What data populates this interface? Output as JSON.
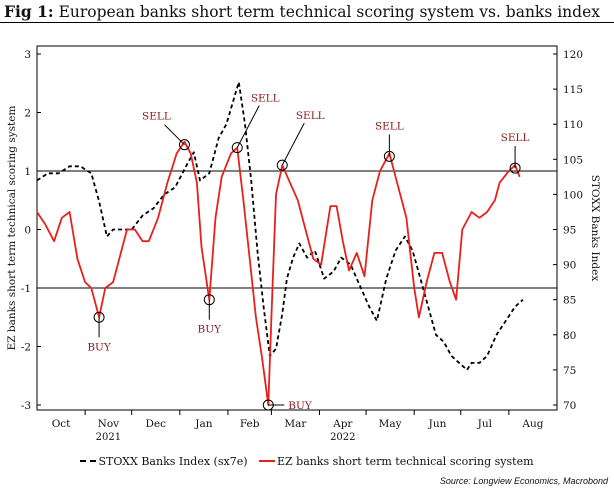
{
  "figure": {
    "label": "Fig 1:",
    "title": "European banks short term technical scoring system vs. banks index",
    "source": "Source: Longview Economics, Macrobond"
  },
  "chart_data": {
    "type": "line",
    "y_left": {
      "label": "EZ banks short term technical scoring system",
      "range": [
        -3,
        3
      ],
      "ticks": [
        "3",
        "2",
        "1",
        "0",
        "-1",
        "-2",
        "-3"
      ]
    },
    "y_right": {
      "label": "STOXX Banks Index",
      "range": [
        70,
        120
      ],
      "ticks": [
        "120",
        "115",
        "110",
        "105",
        "100",
        "95",
        "90",
        "85",
        "80",
        "75",
        "70"
      ]
    },
    "x_ticks": [
      "Oct",
      "Nov",
      "Dec",
      "Jan",
      "Feb",
      "Mar",
      "Apr",
      "May",
      "Jun",
      "Jul",
      "Aug"
    ],
    "x_years": [
      "2021",
      "2022"
    ],
    "reference_lines": [
      1,
      -1
    ],
    "series": [
      {
        "name": "STOXX Banks Index (sx7e)",
        "axis": "right",
        "color": "#000000",
        "style": "dashed",
        "points": [
          [
            "2021-10-01",
            102
          ],
          [
            "2021-10-08",
            103
          ],
          [
            "2021-10-15",
            103
          ],
          [
            "2021-10-22",
            104
          ],
          [
            "2021-10-29",
            104
          ],
          [
            "2021-11-05",
            103
          ],
          [
            "2021-11-10",
            99
          ],
          [
            "2021-11-15",
            94
          ],
          [
            "2021-11-19",
            95
          ],
          [
            "2021-11-26",
            95
          ],
          [
            "2021-12-01",
            95
          ],
          [
            "2021-12-08",
            97
          ],
          [
            "2021-12-15",
            98
          ],
          [
            "2021-12-22",
            100
          ],
          [
            "2021-12-29",
            101
          ],
          [
            "2022-01-05",
            104
          ],
          [
            "2022-01-10",
            106
          ],
          [
            "2022-01-14",
            102
          ],
          [
            "2022-01-20",
            103
          ],
          [
            "2022-01-26",
            108
          ],
          [
            "2022-01-31",
            110
          ],
          [
            "2022-02-04",
            113
          ],
          [
            "2022-02-08",
            116
          ],
          [
            "2022-02-12",
            110
          ],
          [
            "2022-02-16",
            102
          ],
          [
            "2022-02-20",
            92
          ],
          [
            "2022-02-24",
            84
          ],
          [
            "2022-02-28",
            77
          ],
          [
            "2022-03-04",
            78
          ],
          [
            "2022-03-08",
            83
          ],
          [
            "2022-03-11",
            88
          ],
          [
            "2022-03-15",
            91
          ],
          [
            "2022-03-19",
            93
          ],
          [
            "2022-03-24",
            91
          ],
          [
            "2022-03-29",
            92
          ],
          [
            "2022-04-04",
            88
          ],
          [
            "2022-04-10",
            89
          ],
          [
            "2022-04-15",
            91
          ],
          [
            "2022-04-21",
            90
          ],
          [
            "2022-04-27",
            87
          ],
          [
            "2022-05-03",
            84
          ],
          [
            "2022-05-08",
            82
          ],
          [
            "2022-05-14",
            88
          ],
          [
            "2022-05-20",
            92
          ],
          [
            "2022-05-26",
            94
          ],
          [
            "2022-05-31",
            92
          ],
          [
            "2022-06-05",
            88
          ],
          [
            "2022-06-10",
            84
          ],
          [
            "2022-06-15",
            80
          ],
          [
            "2022-06-20",
            79
          ],
          [
            "2022-06-25",
            77
          ],
          [
            "2022-06-30",
            76
          ],
          [
            "2022-07-05",
            75
          ],
          [
            "2022-07-08",
            76
          ],
          [
            "2022-07-13",
            76
          ],
          [
            "2022-07-18",
            77
          ],
          [
            "2022-07-24",
            80
          ],
          [
            "2022-07-30",
            82
          ],
          [
            "2022-08-05",
            84
          ],
          [
            "2022-08-10",
            85
          ]
        ]
      },
      {
        "name": "EZ banks short term technical scoring system",
        "axis": "left",
        "color": "#e8201c",
        "style": "solid",
        "points": [
          [
            "2021-10-01",
            0.3
          ],
          [
            "2021-10-06",
            0.1
          ],
          [
            "2021-10-12",
            -0.2
          ],
          [
            "2021-10-17",
            0.2
          ],
          [
            "2021-10-22",
            0.3
          ],
          [
            "2021-10-27",
            -0.5
          ],
          [
            "2021-11-01",
            -0.9
          ],
          [
            "2021-11-05",
            -1.0
          ],
          [
            "2021-11-10",
            -1.5
          ],
          [
            "2021-11-14",
            -1.0
          ],
          [
            "2021-11-19",
            -0.9
          ],
          [
            "2021-11-23",
            -0.5
          ],
          [
            "2021-11-28",
            0.0
          ],
          [
            "2021-12-03",
            0.0
          ],
          [
            "2021-12-08",
            -0.2
          ],
          [
            "2021-12-12",
            -0.2
          ],
          [
            "2021-12-18",
            0.2
          ],
          [
            "2021-12-24",
            0.8
          ],
          [
            "2021-12-30",
            1.3
          ],
          [
            "2022-01-04",
            1.5
          ],
          [
            "2022-01-08",
            1.3
          ],
          [
            "2022-01-12",
            0.8
          ],
          [
            "2022-01-15",
            -0.3
          ],
          [
            "2022-01-20",
            -1.2
          ],
          [
            "2022-01-24",
            0.2
          ],
          [
            "2022-01-28",
            0.9
          ],
          [
            "2022-02-03",
            1.3
          ],
          [
            "2022-02-07",
            1.4
          ],
          [
            "2022-02-11",
            0.5
          ],
          [
            "2022-02-15",
            -0.5
          ],
          [
            "2022-02-19",
            -1.5
          ],
          [
            "2022-02-23",
            -2.2
          ],
          [
            "2022-02-27",
            -3.0
          ],
          [
            "2022-03-01",
            -1.5
          ],
          [
            "2022-03-04",
            0.6
          ],
          [
            "2022-03-08",
            1.1
          ],
          [
            "2022-03-13",
            0.8
          ],
          [
            "2022-03-18",
            0.5
          ],
          [
            "2022-03-23",
            0.0
          ],
          [
            "2022-03-28",
            -0.5
          ],
          [
            "2022-04-02",
            -0.6
          ],
          [
            "2022-04-08",
            0.4
          ],
          [
            "2022-04-12",
            0.4
          ],
          [
            "2022-04-16",
            -0.2
          ],
          [
            "2022-04-20",
            -0.7
          ],
          [
            "2022-04-25",
            -0.4
          ],
          [
            "2022-04-30",
            -0.8
          ],
          [
            "2022-05-05",
            0.5
          ],
          [
            "2022-05-10",
            1.0
          ],
          [
            "2022-05-16",
            1.3
          ],
          [
            "2022-05-21",
            0.8
          ],
          [
            "2022-05-27",
            0.2
          ],
          [
            "2022-06-01",
            -1.0
          ],
          [
            "2022-06-04",
            -1.5
          ],
          [
            "2022-06-09",
            -0.9
          ],
          [
            "2022-06-14",
            -0.4
          ],
          [
            "2022-06-19",
            -0.4
          ],
          [
            "2022-06-24",
            -0.9
          ],
          [
            "2022-06-28",
            -1.2
          ],
          [
            "2022-07-02",
            0.0
          ],
          [
            "2022-07-08",
            0.3
          ],
          [
            "2022-07-13",
            0.2
          ],
          [
            "2022-07-18",
            0.3
          ],
          [
            "2022-07-23",
            0.5
          ],
          [
            "2022-07-26",
            0.8
          ],
          [
            "2022-08-01",
            1.0
          ],
          [
            "2022-08-05",
            1.1
          ],
          [
            "2022-08-08",
            0.9
          ]
        ]
      }
    ],
    "annotations": [
      {
        "text": "BUY",
        "date": "2021-11-10",
        "value": -1.5,
        "label_pos": "below"
      },
      {
        "text": "SELL",
        "date": "2022-01-04",
        "value": 1.45,
        "label_pos": "above-left"
      },
      {
        "text": "BUY",
        "date": "2022-01-20",
        "value": -1.2,
        "label_pos": "below"
      },
      {
        "text": "SELL",
        "date": "2022-02-07",
        "value": 1.4,
        "label_pos": "above-right"
      },
      {
        "text": "BUY",
        "date": "2022-02-27",
        "value": -3.0,
        "label_pos": "right"
      },
      {
        "text": "SELL",
        "date": "2022-03-08",
        "value": 1.1,
        "label_pos": "above-right"
      },
      {
        "text": "SELL",
        "date": "2022-05-16",
        "value": 1.25,
        "label_pos": "above"
      },
      {
        "text": "SELL",
        "date": "2022-08-05",
        "value": 1.05,
        "label_pos": "above"
      }
    ]
  }
}
